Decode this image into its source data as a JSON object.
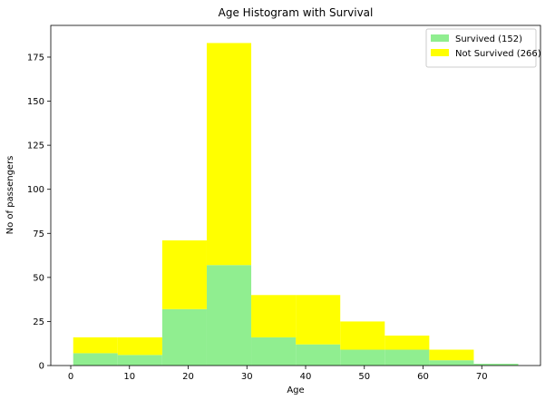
{
  "chart_data": {
    "type": "bar",
    "title": "Age Histogram with Survival",
    "xlabel": "Age",
    "ylabel": "No of passengers",
    "stacked": true,
    "bin_edges": [
      0.42,
      8.0,
      15.58,
      23.16,
      30.74,
      38.32,
      45.9,
      53.48,
      61.06,
      68.64,
      76.22
    ],
    "series": [
      {
        "name": "Survived (152)",
        "color": "#90ee90",
        "values": [
          7,
          6,
          32,
          57,
          16,
          12,
          9,
          9,
          3,
          1
        ]
      },
      {
        "name": "Not Survived (266)",
        "color": "#ffff00",
        "values": [
          9,
          10,
          39,
          126,
          24,
          28,
          16,
          8,
          6,
          0
        ]
      }
    ],
    "xlim": [
      -3.4,
      80.0
    ],
    "ylim": [
      0,
      193
    ],
    "xticks": [
      0,
      10,
      20,
      30,
      40,
      50,
      60,
      70
    ],
    "yticks": [
      0,
      25,
      50,
      75,
      100,
      125,
      150,
      175
    ],
    "legend_position": "top-right",
    "grid": false
  }
}
